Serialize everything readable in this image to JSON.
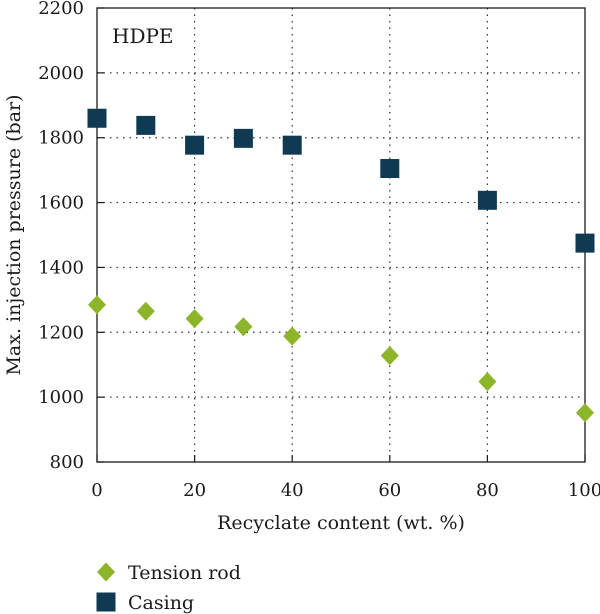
{
  "chart_data": {
    "type": "scatter",
    "annotation": "HDPE",
    "xlabel": "Recyclate content (wt. %)",
    "ylabel": "Max. injection pressure (bar)",
    "xlim": [
      0,
      100
    ],
    "ylim": [
      800,
      2200
    ],
    "xticks": [
      0,
      20,
      40,
      60,
      80,
      100
    ],
    "yticks": [
      800,
      1000,
      1200,
      1400,
      1600,
      1800,
      2000,
      2200
    ],
    "xtick_labels": [
      "0",
      "20",
      "40",
      "60",
      "80",
      "100"
    ],
    "ytick_labels": [
      "800",
      "1000",
      "1200",
      "1400",
      "1600",
      "1800",
      "2000",
      "2200"
    ],
    "grid": true,
    "legend_position": "bottom-left, below plot",
    "series": [
      {
        "name": "Tension rod",
        "marker": "diamond",
        "color": "#8db52a",
        "x": [
          0,
          10,
          20,
          30,
          40,
          60,
          80,
          100
        ],
        "y": [
          1285,
          1265,
          1242,
          1217,
          1188,
          1128,
          1048,
          952
        ]
      },
      {
        "name": "Casing",
        "marker": "square",
        "color": "#0f3a52",
        "x": [
          0,
          10,
          20,
          30,
          40,
          60,
          80,
          100
        ],
        "y": [
          1860,
          1838,
          1777,
          1798,
          1777,
          1705,
          1607,
          1475
        ]
      }
    ]
  }
}
